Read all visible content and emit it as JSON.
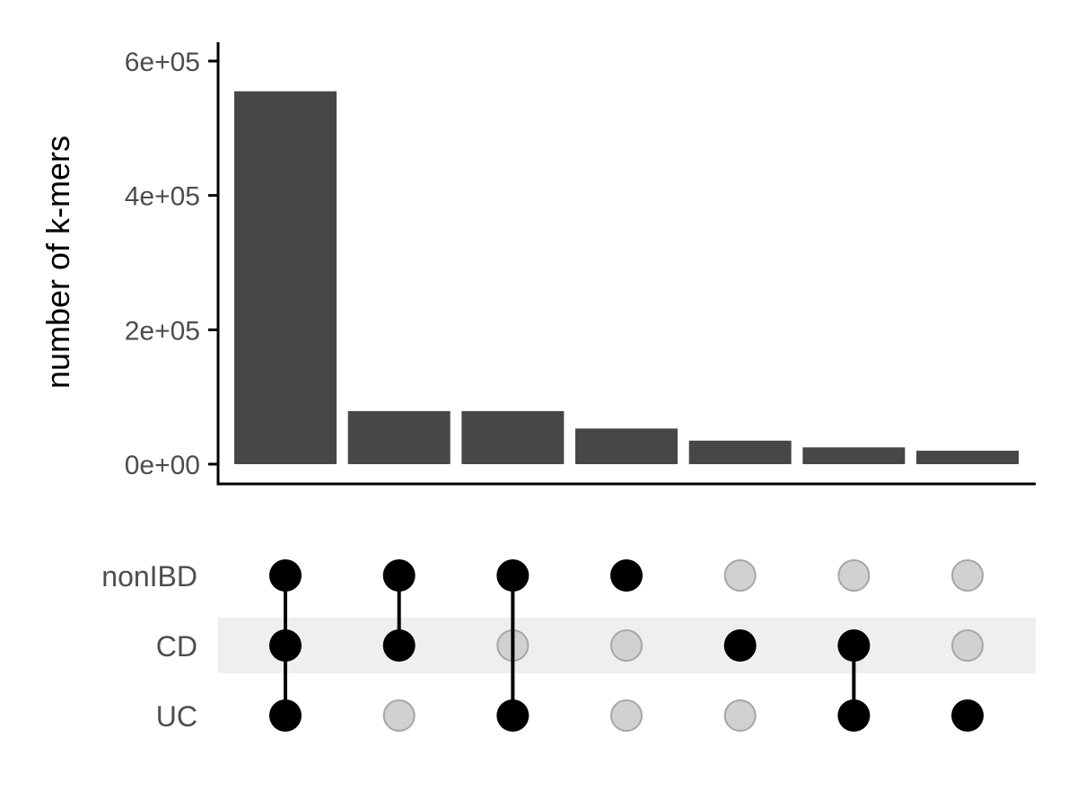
{
  "chart_data": {
    "type": "bar",
    "chart_kind": "upset",
    "title": "",
    "xlabel": "",
    "ylabel": "number of k-mers",
    "ylim": [
      0,
      620000
    ],
    "yticks": [
      {
        "value": 0,
        "label": "0e+00"
      },
      {
        "value": 200000,
        "label": "2e+05"
      },
      {
        "value": 400000,
        "label": "4e+05"
      },
      {
        "value": 600000,
        "label": "6e+05"
      }
    ],
    "grid": false,
    "legend": "none",
    "sets": [
      "nonIBD",
      "CD",
      "UC"
    ],
    "intersections": [
      {
        "members": [
          "nonIBD",
          "CD",
          "UC"
        ],
        "value": 555000
      },
      {
        "members": [
          "nonIBD",
          "CD"
        ],
        "value": 79000
      },
      {
        "members": [
          "nonIBD",
          "UC"
        ],
        "value": 79000
      },
      {
        "members": [
          "nonIBD"
        ],
        "value": 53000
      },
      {
        "members": [
          "CD"
        ],
        "value": 35000
      },
      {
        "members": [
          "CD",
          "UC"
        ],
        "value": 25000
      },
      {
        "members": [
          "UC"
        ],
        "value": 20000
      }
    ],
    "colors": {
      "bar": "#474747",
      "dot_active": "#000000",
      "dot_inactive": "#d1d1d1",
      "dot_inactive_stroke": "#a6a6a6",
      "row_stripe": "#efefef",
      "axis": "#000000"
    }
  }
}
